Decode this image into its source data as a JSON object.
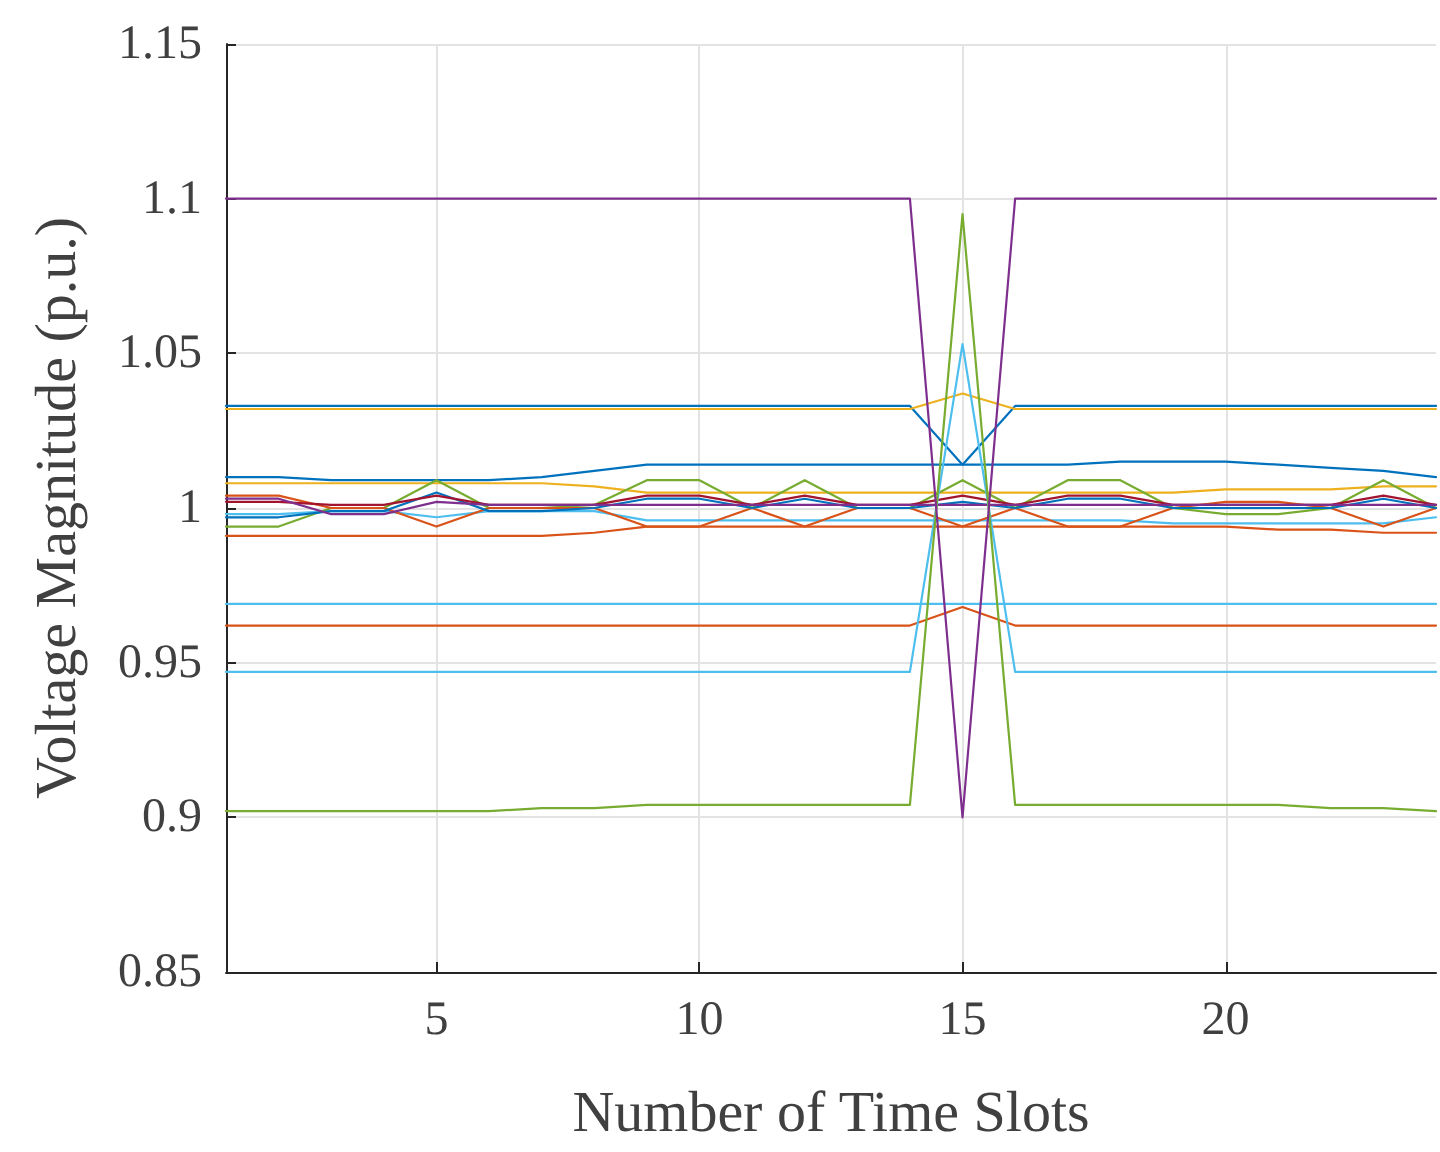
{
  "chart_data": {
    "type": "line",
    "xlabel": "Number of Time Slots",
    "ylabel": "Voltage Magnitude (p.u.)",
    "x": [
      1,
      2,
      3,
      4,
      5,
      6,
      7,
      8,
      9,
      10,
      11,
      12,
      13,
      14,
      15,
      16,
      17,
      18,
      19,
      20,
      21,
      22,
      23,
      24
    ],
    "xlim": [
      1,
      24
    ],
    "xticks": [
      5,
      10,
      15,
      20
    ],
    "ylim": [
      0.85,
      1.15
    ],
    "yticks": [
      0.85,
      0.9,
      0.95,
      1,
      1.05,
      1.1,
      1.15
    ],
    "grid": true,
    "series": [
      {
        "color": "#0072bd",
        "values": [
          1.033,
          1.033,
          1.033,
          1.033,
          1.033,
          1.033,
          1.033,
          1.033,
          1.033,
          1.033,
          1.033,
          1.033,
          1.033,
          1.033,
          1.014,
          1.033,
          1.033,
          1.033,
          1.033,
          1.033,
          1.033,
          1.033,
          1.033,
          1.033
        ]
      },
      {
        "color": "#edb120",
        "values": [
          1.032,
          1.032,
          1.032,
          1.032,
          1.032,
          1.032,
          1.032,
          1.032,
          1.032,
          1.032,
          1.032,
          1.032,
          1.032,
          1.032,
          1.037,
          1.032,
          1.032,
          1.032,
          1.032,
          1.032,
          1.032,
          1.032,
          1.032,
          1.032
        ]
      },
      {
        "color": "#0072bd",
        "values": [
          1.01,
          1.01,
          1.009,
          1.009,
          1.009,
          1.009,
          1.01,
          1.012,
          1.014,
          1.014,
          1.014,
          1.014,
          1.014,
          1.014,
          1.014,
          1.014,
          1.014,
          1.015,
          1.015,
          1.015,
          1.014,
          1.013,
          1.012,
          1.01
        ]
      },
      {
        "color": "#edb120",
        "values": [
          1.008,
          1.008,
          1.008,
          1.008,
          1.008,
          1.008,
          1.008,
          1.007,
          1.005,
          1.005,
          1.005,
          1.005,
          1.005,
          1.005,
          1.005,
          1.005,
          1.005,
          1.005,
          1.005,
          1.006,
          1.006,
          1.006,
          1.007,
          1.007
        ]
      },
      {
        "color": "#d95319",
        "values": [
          0.991,
          0.991,
          0.991,
          0.991,
          0.991,
          0.991,
          0.991,
          0.992,
          0.994,
          0.994,
          0.994,
          0.994,
          0.994,
          0.994,
          0.994,
          0.994,
          0.994,
          0.994,
          0.994,
          0.994,
          0.993,
          0.993,
          0.992,
          0.992
        ]
      },
      {
        "color": "#4dbeee",
        "values": [
          0.998,
          0.998,
          0.999,
          0.999,
          0.997,
          0.999,
          0.999,
          0.999,
          0.996,
          0.996,
          0.996,
          0.996,
          0.996,
          0.996,
          0.996,
          0.996,
          0.996,
          0.996,
          0.995,
          0.995,
          0.995,
          0.995,
          0.995,
          0.997
        ]
      },
      {
        "color": "#77ac30",
        "values": [
          0.994,
          0.994,
          1,
          1,
          1.009,
          1,
          1,
          1.001,
          1.009,
          1.009,
          1,
          1.009,
          1,
          1,
          1.009,
          1,
          1.009,
          1.009,
          1,
          0.998,
          0.998,
          1,
          1.009,
          1
        ]
      },
      {
        "color": "#d95319",
        "values": [
          1.004,
          1.004,
          1,
          1,
          0.994,
          1,
          1,
          1,
          0.994,
          0.994,
          1,
          0.994,
          1,
          1,
          0.994,
          1,
          0.994,
          0.994,
          1,
          1.002,
          1.002,
          1,
          0.994,
          1
        ]
      },
      {
        "color": "#0072bd",
        "values": [
          0.997,
          0.997,
          0.999,
          0.999,
          1.005,
          0.999,
          0.999,
          1,
          1.003,
          1.003,
          1,
          1.003,
          1,
          1,
          1.002,
          1,
          1.003,
          1.003,
          1,
          1,
          1,
          1,
          1.003,
          1
        ]
      },
      {
        "color": "#a2142f",
        "values": [
          1.002,
          1.002,
          1.001,
          1.001,
          1.004,
          1.001,
          1.001,
          1.001,
          1.004,
          1.004,
          1.001,
          1.004,
          1.001,
          1.001,
          1.004,
          1.001,
          1.004,
          1.004,
          1.001,
          1.001,
          1.001,
          1.001,
          1.004,
          1.001
        ]
      },
      {
        "color": "#7e2f8e",
        "values": [
          1.003,
          1.003,
          0.998,
          0.998,
          1.002,
          1.001,
          1.001,
          1.001,
          1.001,
          1.001,
          1.001,
          1.001,
          1.001,
          1.001,
          1.001,
          1.001,
          1.001,
          1.001,
          1.001,
          1.001,
          1.001,
          1.001,
          1.001,
          1.001
        ]
      },
      {
        "color": "#4dbeee",
        "values": [
          0.969,
          0.969,
          0.969,
          0.969,
          0.969,
          0.969,
          0.969,
          0.969,
          0.969,
          0.969,
          0.969,
          0.969,
          0.969,
          0.969,
          0.969,
          0.969,
          0.969,
          0.969,
          0.969,
          0.969,
          0.969,
          0.969,
          0.969,
          0.969
        ]
      },
      {
        "color": "#d95319",
        "values": [
          0.962,
          0.962,
          0.962,
          0.962,
          0.962,
          0.962,
          0.962,
          0.962,
          0.962,
          0.962,
          0.962,
          0.962,
          0.962,
          0.962,
          0.968,
          0.962,
          0.962,
          0.962,
          0.962,
          0.962,
          0.962,
          0.962,
          0.962,
          0.962
        ]
      },
      {
        "color": "#4dbeee",
        "values": [
          0.947,
          0.947,
          0.947,
          0.947,
          0.947,
          0.947,
          0.947,
          0.947,
          0.947,
          0.947,
          0.947,
          0.947,
          0.947,
          0.947,
          1.053,
          0.947,
          0.947,
          0.947,
          0.947,
          0.947,
          0.947,
          0.947,
          0.947,
          0.947
        ]
      },
      {
        "color": "#77ac30",
        "values": [
          0.902,
          0.902,
          0.902,
          0.902,
          0.902,
          0.902,
          0.903,
          0.903,
          0.904,
          0.904,
          0.904,
          0.904,
          0.904,
          0.904,
          1.095,
          0.904,
          0.904,
          0.904,
          0.904,
          0.904,
          0.904,
          0.903,
          0.903,
          0.902
        ]
      },
      {
        "color": "#7e2f8e",
        "values": [
          1.1,
          1.1,
          1.1,
          1.1,
          1.1,
          1.1,
          1.1,
          1.1,
          1.1,
          1.1,
          1.1,
          1.1,
          1.1,
          1.1,
          0.9,
          1.1,
          1.1,
          1.1,
          1.1,
          1.1,
          1.1,
          1.1,
          1.1,
          1.1
        ]
      }
    ]
  }
}
